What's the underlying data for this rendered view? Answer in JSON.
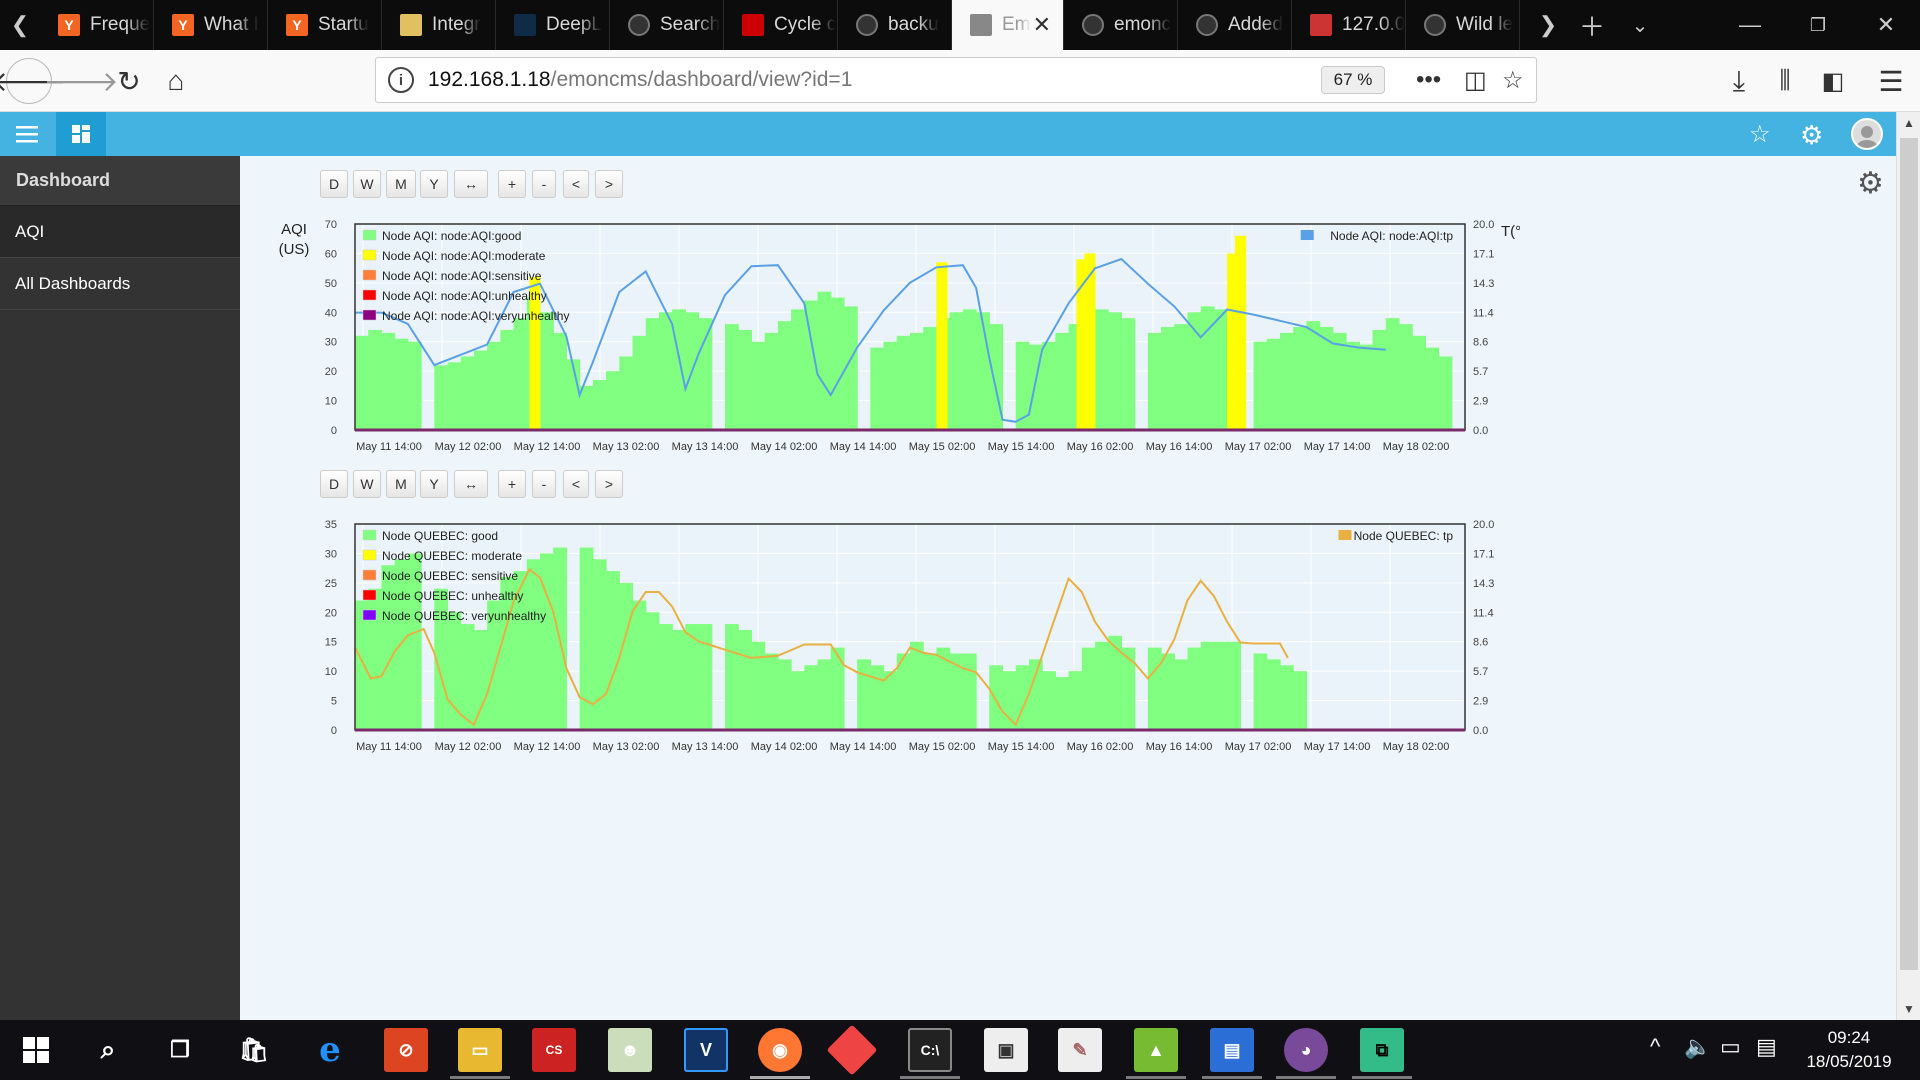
{
  "browser": {
    "tabs": [
      {
        "title": "Freque",
        "favicon": "Y",
        "favicon_color": "#f26522"
      },
      {
        "title": "What I",
        "favicon": "Y",
        "favicon_color": "#f26522"
      },
      {
        "title": "Startu",
        "favicon": "Y",
        "favicon_color": "#f26522"
      },
      {
        "title": "Integr",
        "favicon": "hat",
        "favicon_color": "#e0c060"
      },
      {
        "title": "DeepL",
        "favicon": "deepl",
        "favicon_color": "#0f2b46"
      },
      {
        "title": "Search",
        "favicon": "github",
        "favicon_color": "#333"
      },
      {
        "title": "Cycle c",
        "favicon": "doc",
        "favicon_color": "#c00"
      },
      {
        "title": "backu",
        "favicon": "github",
        "favicon_color": "#333"
      },
      {
        "title": "Em",
        "favicon": "box",
        "favicon_color": "#888",
        "active": true
      },
      {
        "title": "emonc",
        "favicon": "github",
        "favicon_color": "#333"
      },
      {
        "title": "Added",
        "favicon": "github",
        "favicon_color": "#333"
      },
      {
        "title": "127.0.0",
        "favicon": "redis",
        "favicon_color": "#c33"
      },
      {
        "title": "Wild le",
        "favicon": "github",
        "favicon_color": "#333"
      }
    ],
    "url_host": "192.168.1.18",
    "url_path": "/emoncms/dashboard/view?id=1",
    "zoom": "67 %"
  },
  "sidebar": {
    "title": "Dashboard",
    "items": [
      {
        "label": "AQI",
        "active": true
      },
      {
        "label": "All Dashboards",
        "active": false
      }
    ]
  },
  "controls": [
    "D",
    "W",
    "M",
    "Y",
    "↔",
    "+",
    "-",
    "<",
    ">"
  ],
  "x_labels": [
    "May 11 14:00",
    "May 12 02:00",
    "May 12 14:00",
    "May 13 02:00",
    "May 13 14:00",
    "May 14 02:00",
    "May 14 14:00",
    "May 15 02:00",
    "May 15 14:00",
    "May 16 02:00",
    "May 16 14:00",
    "May 17 02:00",
    "May 17 14:00",
    "May 18 02:00"
  ],
  "chart_data": [
    {
      "type": "bar",
      "ylabel_left": "AQI\n(US)",
      "ylabel_right": "T(°C)",
      "y_left_ticks": [
        "0",
        "10",
        "20",
        "30",
        "40",
        "50",
        "60",
        "70"
      ],
      "y_right_ticks": [
        "0.0",
        "2.9",
        "5.7",
        "8.6",
        "11.4",
        "14.3",
        "17.1",
        "20.0"
      ],
      "ylim_left": [
        0,
        70
      ],
      "ylim_right": [
        0,
        20
      ],
      "legend_left": [
        {
          "name": "Node AQI: node:AQI:good",
          "color": "#80ff80"
        },
        {
          "name": "Node AQI: node:AQI:moderate",
          "color": "#ffff00"
        },
        {
          "name": "Node AQI: node:AQI:sensitive",
          "color": "#ff7e3a"
        },
        {
          "name": "Node AQI: node:AQI:unhealthy",
          "color": "#ff0000"
        },
        {
          "name": "Node AQI: node:AQI:veryunhealthy",
          "color": "#8f0080"
        }
      ],
      "legend_right": [
        {
          "name": "Node AQI: node:AQI:tp",
          "color": "#5aa0e6"
        }
      ],
      "bars_good": [
        [
          0,
          32
        ],
        [
          0.5,
          34
        ],
        [
          1,
          33
        ],
        [
          1.5,
          31
        ],
        [
          2,
          30
        ],
        [
          2.5,
          0
        ],
        [
          3,
          22
        ],
        [
          3.5,
          23
        ],
        [
          4,
          25
        ],
        [
          4.5,
          27
        ],
        [
          5,
          30
        ],
        [
          5.5,
          34
        ],
        [
          6,
          38
        ],
        [
          6.5,
          45
        ],
        [
          7,
          40
        ],
        [
          7.5,
          33
        ],
        [
          8,
          24
        ],
        [
          8.5,
          15
        ],
        [
          9,
          17
        ],
        [
          9.5,
          20
        ],
        [
          10,
          25
        ],
        [
          10.5,
          32
        ],
        [
          11,
          38
        ],
        [
          11.5,
          40
        ],
        [
          12,
          41
        ],
        [
          12.5,
          40
        ],
        [
          13,
          38
        ],
        [
          13.5,
          0
        ],
        [
          14,
          36
        ],
        [
          14.5,
          34
        ],
        [
          15,
          30
        ],
        [
          15.5,
          33
        ],
        [
          16,
          37
        ],
        [
          16.5,
          41
        ],
        [
          17,
          44
        ],
        [
          17.5,
          47
        ],
        [
          18,
          45
        ],
        [
          18.5,
          42
        ],
        [
          19,
          0
        ],
        [
          19.5,
          28
        ],
        [
          20,
          30
        ],
        [
          20.5,
          32
        ],
        [
          21,
          33
        ],
        [
          21.5,
          35
        ],
        [
          22,
          38
        ],
        [
          22.5,
          40
        ],
        [
          23,
          41
        ],
        [
          23.5,
          40
        ],
        [
          24,
          36
        ],
        [
          24.5,
          0
        ],
        [
          25,
          30
        ],
        [
          25.5,
          29
        ],
        [
          26,
          30
        ],
        [
          26.5,
          33
        ],
        [
          27,
          36
        ],
        [
          27.5,
          42
        ],
        [
          28,
          41
        ],
        [
          28.5,
          40
        ],
        [
          29,
          38
        ],
        [
          29.5,
          0
        ],
        [
          30,
          33
        ],
        [
          30.5,
          35
        ],
        [
          31,
          36
        ],
        [
          31.5,
          40
        ],
        [
          32,
          42
        ],
        [
          32.5,
          41
        ],
        [
          33,
          40
        ],
        [
          33.5,
          0
        ],
        [
          34,
          30
        ],
        [
          34.5,
          31
        ],
        [
          35,
          33
        ],
        [
          35.5,
          35
        ],
        [
          36,
          37
        ],
        [
          36.5,
          35
        ],
        [
          37,
          33
        ],
        [
          37.5,
          30
        ],
        [
          38,
          29
        ],
        [
          38.5,
          34
        ],
        [
          39,
          38
        ],
        [
          39.5,
          36
        ],
        [
          40,
          32
        ],
        [
          40.5,
          28
        ],
        [
          41,
          25
        ]
      ],
      "bars_moderate": [
        [
          6.6,
          52
        ],
        [
          22,
          57
        ],
        [
          27.3,
          58
        ],
        [
          27.6,
          60
        ],
        [
          33,
          60
        ],
        [
          33.3,
          66
        ]
      ],
      "series_tp": [
        [
          0,
          11.4
        ],
        [
          1,
          11.4
        ],
        [
          2,
          10.3
        ],
        [
          3,
          6.3
        ],
        [
          4,
          7.3
        ],
        [
          5,
          8.3
        ],
        [
          6,
          13.4
        ],
        [
          7,
          14.2
        ],
        [
          8,
          9.1
        ],
        [
          8.5,
          3.4
        ],
        [
          9,
          6.6
        ],
        [
          10,
          13.4
        ],
        [
          11,
          15.4
        ],
        [
          12,
          10.3
        ],
        [
          12.5,
          4.0
        ],
        [
          13,
          7.4
        ],
        [
          14,
          13.1
        ],
        [
          15,
          15.9
        ],
        [
          16,
          16.0
        ],
        [
          17,
          12.3
        ],
        [
          17.5,
          5.4
        ],
        [
          18,
          3.4
        ],
        [
          19,
          8.0
        ],
        [
          20,
          11.6
        ],
        [
          21,
          14.3
        ],
        [
          22,
          15.8
        ],
        [
          23,
          16.0
        ],
        [
          23.5,
          13.8
        ],
        [
          24,
          7.0
        ],
        [
          24.5,
          1.0
        ],
        [
          25,
          0.8
        ],
        [
          25.5,
          1.5
        ],
        [
          26,
          7.8
        ],
        [
          27,
          12.3
        ],
        [
          28,
          15.7
        ],
        [
          29,
          16.6
        ],
        [
          30,
          14.2
        ],
        [
          31,
          12.0
        ],
        [
          32,
          9.0
        ],
        [
          33,
          11.7
        ],
        [
          34,
          11.2
        ],
        [
          35,
          10.6
        ],
        [
          36,
          10.0
        ],
        [
          37,
          8.4
        ],
        [
          38,
          8.0
        ],
        [
          39,
          7.8
        ]
      ]
    },
    {
      "type": "bar",
      "y_left_ticks": [
        "0",
        "5",
        "10",
        "15",
        "20",
        "25",
        "30",
        "35"
      ],
      "y_right_ticks": [
        "0.0",
        "2.9",
        "5.7",
        "8.6",
        "11.4",
        "14.3",
        "17.1",
        "20.0"
      ],
      "ylim_left": [
        0,
        35
      ],
      "ylim_right": [
        0,
        20
      ],
      "legend_left": [
        {
          "name": "Node QUEBEC: good",
          "color": "#80ff80"
        },
        {
          "name": "Node QUEBEC: moderate",
          "color": "#ffff00"
        },
        {
          "name": "Node QUEBEC: sensitive",
          "color": "#ff7e3a"
        },
        {
          "name": "Node QUEBEC: unhealthy",
          "color": "#ff0000"
        },
        {
          "name": "Node QUEBEC: veryunhealthy",
          "color": "#8000ff"
        }
      ],
      "legend_right": [
        {
          "name": "Node QUEBEC: tp",
          "color": "#e8b042"
        }
      ],
      "bars_good": [
        [
          0,
          22
        ],
        [
          0.5,
          24
        ],
        [
          1,
          28
        ],
        [
          1.5,
          29
        ],
        [
          2,
          30
        ],
        [
          2.5,
          0
        ],
        [
          3,
          24
        ],
        [
          3.5,
          20
        ],
        [
          4,
          18
        ],
        [
          4.5,
          17
        ],
        [
          5,
          22
        ],
        [
          5.5,
          26
        ],
        [
          6,
          27
        ],
        [
          6.5,
          29
        ],
        [
          7,
          30
        ],
        [
          7.5,
          31
        ],
        [
          8,
          0
        ],
        [
          8.5,
          31
        ],
        [
          9,
          29
        ],
        [
          9.5,
          27
        ],
        [
          10,
          25
        ],
        [
          10.5,
          22
        ],
        [
          11,
          20
        ],
        [
          11.5,
          18
        ],
        [
          12,
          17
        ],
        [
          12.5,
          18
        ],
        [
          13,
          18
        ],
        [
          13.5,
          0
        ],
        [
          14,
          18
        ],
        [
          14.5,
          17
        ],
        [
          15,
          15
        ],
        [
          15.5,
          13
        ],
        [
          16,
          12
        ],
        [
          16.5,
          10
        ],
        [
          17,
          11
        ],
        [
          17.5,
          12
        ],
        [
          18,
          14
        ],
        [
          18.5,
          0
        ],
        [
          19,
          12
        ],
        [
          19.5,
          11
        ],
        [
          20,
          10
        ],
        [
          20.5,
          13
        ],
        [
          21,
          15
        ],
        [
          21.5,
          13
        ],
        [
          22,
          14
        ],
        [
          22.5,
          13
        ],
        [
          23,
          13
        ],
        [
          23.5,
          0
        ],
        [
          24,
          11
        ],
        [
          24.5,
          10
        ],
        [
          25,
          11
        ],
        [
          25.5,
          12
        ],
        [
          26,
          10
        ],
        [
          26.5,
          9
        ],
        [
          27,
          10
        ],
        [
          27.5,
          14
        ],
        [
          28,
          15
        ],
        [
          28.5,
          16
        ],
        [
          29,
          14
        ],
        [
          29.5,
          0
        ],
        [
          30,
          14
        ],
        [
          30.5,
          13
        ],
        [
          31,
          12
        ],
        [
          31.5,
          14
        ],
        [
          32,
          15
        ],
        [
          32.5,
          15
        ],
        [
          33,
          15
        ],
        [
          33.5,
          0
        ],
        [
          34,
          13
        ],
        [
          34.5,
          12
        ],
        [
          35,
          11
        ],
        [
          35.5,
          10
        ]
      ],
      "series_tp": [
        [
          0,
          8.0
        ],
        [
          0.6,
          5.0
        ],
        [
          1,
          5.2
        ],
        [
          1.5,
          7.6
        ],
        [
          2,
          9.2
        ],
        [
          2.6,
          9.8
        ],
        [
          3,
          7.5
        ],
        [
          3.5,
          3.0
        ],
        [
          4,
          1.5
        ],
        [
          4.5,
          0.5
        ],
        [
          5,
          3.5
        ],
        [
          5.5,
          8.0
        ],
        [
          6,
          12.5
        ],
        [
          6.6,
          15.6
        ],
        [
          7,
          14.8
        ],
        [
          7.5,
          11.5
        ],
        [
          8,
          6.0
        ],
        [
          8.5,
          3.2
        ],
        [
          9,
          2.5
        ],
        [
          9.5,
          3.5
        ],
        [
          10,
          7.0
        ],
        [
          10.5,
          11.5
        ],
        [
          11,
          13.4
        ],
        [
          11.5,
          13.4
        ],
        [
          12,
          12.0
        ],
        [
          12.5,
          9.5
        ],
        [
          13,
          8.6
        ],
        [
          13.5,
          8.2
        ],
        [
          14,
          7.8
        ],
        [
          15,
          7.0
        ],
        [
          16,
          7.2
        ],
        [
          17,
          8.3
        ],
        [
          18,
          8.3
        ],
        [
          18.5,
          6.3
        ],
        [
          19,
          5.6
        ],
        [
          20,
          4.8
        ],
        [
          20.5,
          6.0
        ],
        [
          21,
          8.0
        ],
        [
          21.5,
          7.5
        ],
        [
          22,
          7.3
        ],
        [
          23,
          6.0
        ],
        [
          23.5,
          5.6
        ],
        [
          24,
          4.0
        ],
        [
          24.5,
          1.8
        ],
        [
          25,
          0.5
        ],
        [
          25.5,
          3.5
        ],
        [
          26,
          7.2
        ],
        [
          26.5,
          11.0
        ],
        [
          27,
          14.7
        ],
        [
          27.5,
          13.4
        ],
        [
          28,
          10.5
        ],
        [
          28.5,
          8.7
        ],
        [
          29,
          7.5
        ],
        [
          29.5,
          6.5
        ],
        [
          30,
          5.0
        ],
        [
          30.5,
          6.5
        ],
        [
          31,
          8.8
        ],
        [
          31.5,
          12.6
        ],
        [
          32,
          14.5
        ],
        [
          32.5,
          13.0
        ],
        [
          33,
          10.5
        ],
        [
          33.5,
          8.5
        ],
        [
          34,
          8.4
        ],
        [
          35,
          8.4
        ],
        [
          35.3,
          7.0
        ]
      ]
    }
  ],
  "taskbar": {
    "time": "09:24",
    "date": "18/05/2019"
  }
}
